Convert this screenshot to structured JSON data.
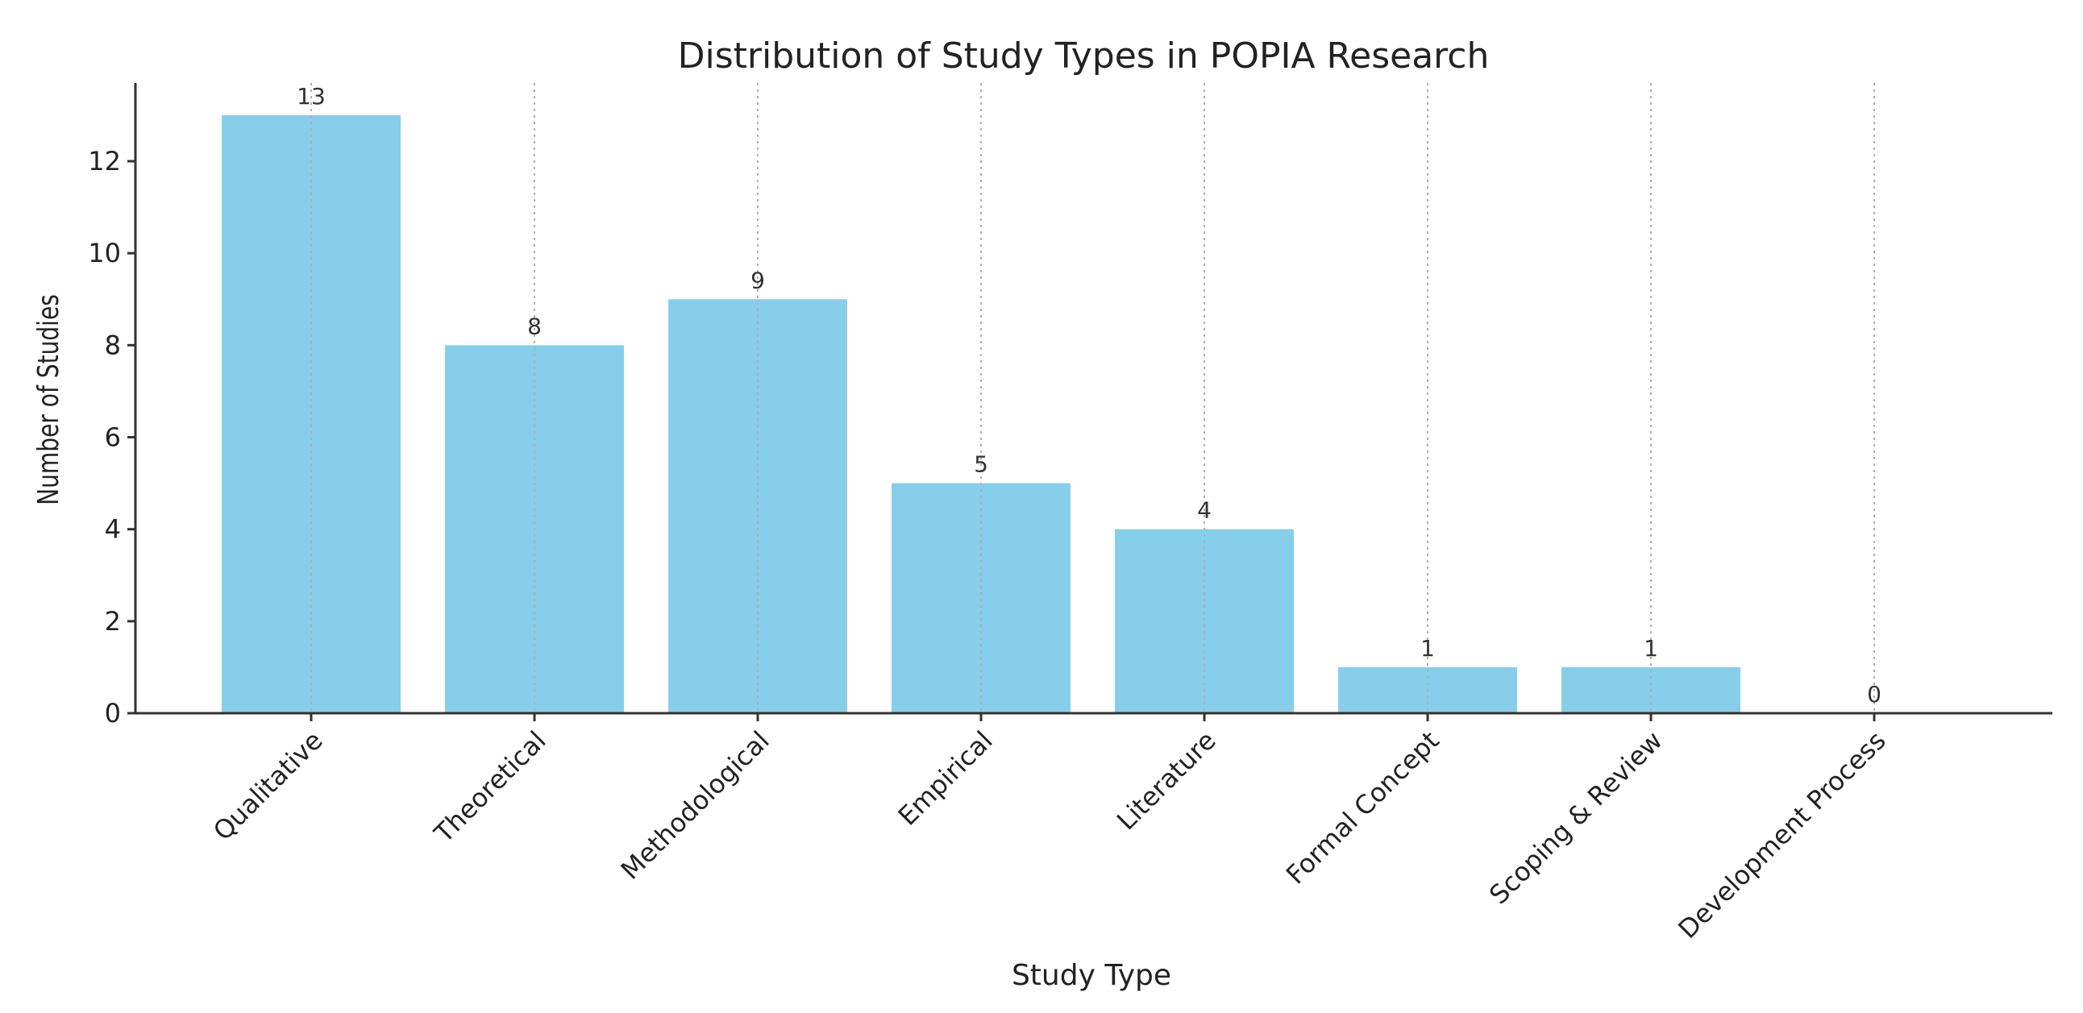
{
  "chart_data": {
    "type": "bar",
    "title": "Distribution of Study Types in POPIA Research",
    "xlabel": "Study Type",
    "ylabel": "Number of Studies",
    "categories": [
      "Qualitative",
      "Theoretical",
      "Methodological",
      "Empirical",
      "Literature",
      "Formal Concept",
      "Scoping & Review",
      "Development Process"
    ],
    "values": [
      13,
      8,
      9,
      5,
      4,
      1,
      1,
      0
    ],
    "value_labels": [
      "13",
      "8",
      "9",
      "5",
      "4",
      "1",
      "1",
      "0"
    ],
    "ylim": [
      0,
      13.7
    ],
    "yticks": [
      0,
      2,
      4,
      6,
      8,
      10,
      12
    ],
    "ytick_labels": [
      "0",
      "2",
      "4",
      "6",
      "8",
      "10",
      "12"
    ],
    "grid": "x-dotted",
    "bar_color": "#87CEEB",
    "axis_color": "#333333",
    "grid_color": "#b0b0b0"
  }
}
